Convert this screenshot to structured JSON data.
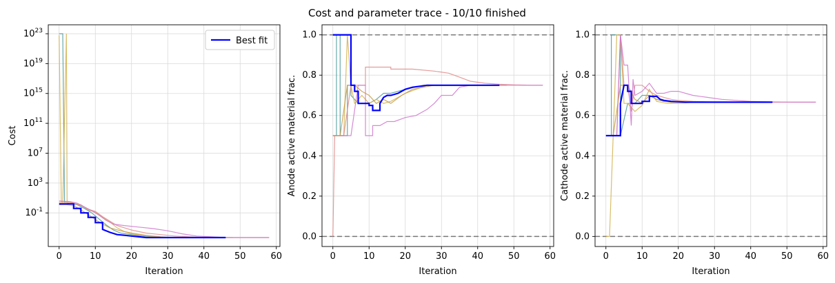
{
  "figure": {
    "suptitle": "Cost and parameter trace - 10/10 finished"
  },
  "colors": {
    "best_fit": "#0000ff",
    "trace_palette": [
      "#4c9a9a",
      "#d2b24e",
      "#e08a8a",
      "#cc77cc",
      "#c49a4a",
      "#7fb0a0"
    ],
    "bound_line": "#777777",
    "grid": "#d9d9d9"
  },
  "chart_data": [
    {
      "type": "line",
      "xlabel": "Iteration",
      "ylabel": "Cost",
      "yscale": "log",
      "xlim": [
        -3,
        61
      ],
      "ylim_exp": [
        -5.5,
        24.2
      ],
      "xticks": [
        0,
        10,
        20,
        30,
        40,
        50,
        60
      ],
      "yticks": [
        {
          "label": "10",
          "exp": "-1",
          "v": -1
        },
        {
          "label": "10",
          "exp": "3",
          "v": 3
        },
        {
          "label": "10",
          "exp": "7",
          "v": 7
        },
        {
          "label": "10",
          "exp": "11",
          "v": 11
        },
        {
          "label": "10",
          "exp": "15",
          "v": 15
        },
        {
          "label": "10",
          "exp": "19",
          "v": 19
        },
        {
          "label": "10",
          "exp": "23",
          "v": 23
        }
      ],
      "grid": true,
      "legend": {
        "position": "top-right",
        "entries": [
          "Best fit"
        ]
      },
      "best_fit": {
        "name": "Best fit",
        "x": [
          0,
          4,
          4,
          6,
          6,
          8,
          8,
          10,
          10,
          12,
          12,
          14,
          16,
          18,
          20,
          22,
          24,
          26,
          30,
          35,
          40,
          46
        ],
        "y_log10": [
          0.2,
          0.2,
          -0.4,
          -0.4,
          -1.0,
          -1.0,
          -1.6,
          -1.6,
          -2.3,
          -2.3,
          -3.2,
          -3.6,
          -3.9,
          -4.0,
          -4.1,
          -4.2,
          -4.3,
          -4.3,
          -4.3,
          -4.3,
          -4.3,
          -4.3
        ]
      },
      "traces": [
        {
          "x": [
            0,
            1,
            1.5,
            2,
            3,
            5,
            7,
            9,
            11,
            13,
            15,
            17,
            20,
            23,
            26,
            30,
            35,
            40,
            46
          ],
          "y_log10": [
            23,
            23,
            0.4,
            0.4,
            0.2,
            0.1,
            -0.4,
            -1.0,
            -1.8,
            -2.6,
            -3.3,
            -3.7,
            -3.9,
            -4.1,
            -4.2,
            -4.3,
            -4.3,
            -4.3,
            -4.3
          ]
        },
        {
          "x": [
            0,
            0.6,
            1,
            2,
            2.2,
            4,
            6,
            8,
            10,
            12,
            14,
            16,
            18,
            20,
            23,
            26,
            30,
            36,
            42,
            48
          ],
          "y_log10": [
            22.8,
            0.5,
            0.4,
            23,
            0.6,
            0.3,
            0.1,
            -0.6,
            -0.9,
            -1.6,
            -2.2,
            -3.0,
            -3.5,
            -3.8,
            -4.0,
            -4.2,
            -4.3,
            -4.3,
            -4.3,
            -4.3
          ]
        },
        {
          "x": [
            0,
            2,
            4,
            6,
            8,
            10,
            12,
            14,
            16,
            20,
            24,
            28,
            32,
            36,
            40,
            45,
            50,
            55,
            58
          ],
          "y_log10": [
            0.4,
            0.4,
            0.3,
            0.0,
            -0.5,
            -0.8,
            -1.5,
            -2.1,
            -2.7,
            -3.3,
            -3.7,
            -3.9,
            -4.1,
            -4.2,
            -4.3,
            -4.3,
            -4.3,
            -4.3,
            -4.3
          ]
        },
        {
          "x": [
            0,
            3,
            5,
            7,
            9,
            11,
            13,
            15,
            18,
            22,
            26,
            30,
            34,
            38,
            42,
            46,
            50,
            54,
            58
          ],
          "y_log10": [
            0.6,
            0.5,
            0.3,
            -0.2,
            -0.7,
            -1.3,
            -2.0,
            -2.5,
            -2.7,
            -2.9,
            -3.1,
            -3.4,
            -3.8,
            -4.1,
            -4.2,
            -4.3,
            -4.3,
            -4.3,
            -4.3
          ]
        },
        {
          "x": [
            0,
            2,
            4,
            6,
            8,
            10,
            12,
            14,
            17,
            20,
            24,
            28,
            32,
            36,
            40,
            44
          ],
          "y_log10": [
            0.1,
            0.1,
            0.0,
            -0.6,
            -1.2,
            -1.9,
            -2.5,
            -3.0,
            -3.4,
            -3.7,
            -4.0,
            -4.2,
            -4.3,
            -4.3,
            -4.3,
            -4.3
          ]
        }
      ]
    },
    {
      "type": "line",
      "xlabel": "Iteration",
      "ylabel": "Anode active material frac.",
      "xlim": [
        -3,
        61
      ],
      "ylim": [
        -0.05,
        1.05
      ],
      "xticks": [
        0,
        10,
        20,
        30,
        40,
        50,
        60
      ],
      "yticks": [
        0.0,
        0.2,
        0.4,
        0.6,
        0.8,
        1.0
      ],
      "bounds": [
        0.0,
        1.0
      ],
      "grid": true,
      "best_fit": {
        "name": "Best fit",
        "x": [
          0,
          4,
          5,
          5,
          6,
          6,
          7,
          7,
          10,
          10,
          11,
          11,
          13,
          13,
          14,
          15,
          16,
          18,
          20,
          22,
          24,
          26,
          30,
          35,
          40,
          46
        ],
        "y": [
          1.0,
          1.0,
          1.0,
          0.75,
          0.75,
          0.72,
          0.72,
          0.66,
          0.66,
          0.65,
          0.65,
          0.625,
          0.625,
          0.66,
          0.69,
          0.7,
          0.7,
          0.71,
          0.73,
          0.74,
          0.745,
          0.75,
          0.75,
          0.75,
          0.75,
          0.75
        ]
      },
      "traces": [
        {
          "x": [
            0,
            1,
            1,
            2,
            2,
            4,
            4,
            5,
            5,
            7,
            10,
            12,
            14,
            16,
            20,
            25,
            30,
            36,
            42,
            48
          ],
          "y": [
            0.5,
            0.5,
            1.0,
            1.0,
            0.5,
            0.5,
            0.75,
            0.75,
            0.7,
            0.66,
            0.66,
            0.68,
            0.71,
            0.71,
            0.73,
            0.75,
            0.75,
            0.75,
            0.75,
            0.75
          ]
        },
        {
          "x": [
            0,
            2,
            3,
            4,
            5,
            6,
            8,
            10,
            12,
            14,
            16,
            18,
            20,
            23,
            26,
            30,
            36,
            42,
            48
          ],
          "y": [
            0.5,
            0.5,
            0.5,
            1.0,
            0.75,
            0.66,
            0.7,
            0.66,
            0.68,
            0.66,
            0.67,
            0.69,
            0.71,
            0.73,
            0.75,
            0.75,
            0.75,
            0.75,
            0.75
          ]
        },
        {
          "x": [
            0,
            0.5,
            1,
            3,
            5,
            7,
            9,
            9,
            12,
            16,
            16,
            22,
            28,
            32,
            35,
            38,
            42,
            46,
            50,
            55,
            58
          ],
          "y": [
            0.0,
            0.5,
            0.5,
            0.5,
            0.75,
            0.75,
            0.75,
            0.84,
            0.84,
            0.84,
            0.83,
            0.83,
            0.82,
            0.81,
            0.79,
            0.77,
            0.76,
            0.755,
            0.752,
            0.75,
            0.75
          ]
        },
        {
          "x": [
            0,
            3,
            5,
            7,
            9,
            9,
            11,
            11,
            13,
            15,
            17,
            20,
            23,
            26,
            28,
            30,
            33,
            35,
            38,
            42,
            46,
            50,
            55,
            58
          ],
          "y": [
            0.5,
            0.5,
            0.5,
            0.75,
            0.75,
            0.5,
            0.5,
            0.55,
            0.55,
            0.57,
            0.57,
            0.59,
            0.6,
            0.63,
            0.66,
            0.7,
            0.7,
            0.74,
            0.75,
            0.75,
            0.75,
            0.75,
            0.75,
            0.75
          ]
        },
        {
          "x": [
            0,
            2,
            4,
            6,
            8,
            10,
            12,
            14,
            16,
            19,
            22,
            25,
            28,
            32,
            36,
            40,
            44
          ],
          "y": [
            0.5,
            0.5,
            0.75,
            0.75,
            0.72,
            0.7,
            0.66,
            0.68,
            0.66,
            0.7,
            0.73,
            0.74,
            0.75,
            0.75,
            0.75,
            0.75,
            0.75
          ]
        }
      ]
    },
    {
      "type": "line",
      "xlabel": "Iteration",
      "ylabel": "Cathode active material frac.",
      "xlim": [
        -3,
        61
      ],
      "ylim": [
        -0.05,
        1.05
      ],
      "xticks": [
        0,
        10,
        20,
        30,
        40,
        50,
        60
      ],
      "yticks": [
        0.0,
        0.2,
        0.4,
        0.6,
        0.8,
        1.0
      ],
      "bounds": [
        0.0,
        1.0
      ],
      "grid": true,
      "best_fit": {
        "name": "Best fit",
        "x": [
          0,
          4,
          4,
          5,
          6,
          6,
          7,
          7,
          10,
          10,
          12,
          12,
          14,
          15,
          16,
          18,
          20,
          22,
          24,
          26,
          30,
          35,
          40,
          46
        ],
        "y": [
          0.5,
          0.5,
          0.66,
          0.75,
          0.75,
          0.72,
          0.72,
          0.66,
          0.66,
          0.67,
          0.67,
          0.695,
          0.695,
          0.68,
          0.675,
          0.67,
          0.668,
          0.666,
          0.666,
          0.666,
          0.666,
          0.666,
          0.666,
          0.666
        ]
      },
      "traces": [
        {
          "x": [
            0,
            1.5,
            1.5,
            4,
            4,
            6,
            8,
            10,
            12,
            14,
            16,
            20,
            25,
            30,
            36,
            42,
            48
          ],
          "y": [
            0.5,
            0.5,
            1.0,
            1.0,
            0.5,
            0.66,
            0.66,
            0.7,
            0.7,
            0.68,
            0.67,
            0.666,
            0.666,
            0.666,
            0.666,
            0.666,
            0.666
          ]
        },
        {
          "x": [
            0,
            0.5,
            1,
            2,
            3,
            4,
            5,
            6,
            8,
            10,
            12,
            14,
            17,
            20,
            24,
            28,
            32,
            38,
            44,
            48
          ],
          "y": [
            0.0,
            0.0,
            0.0,
            0.5,
            1.0,
            1.0,
            0.66,
            0.66,
            0.62,
            0.65,
            0.73,
            0.67,
            0.66,
            0.66,
            0.665,
            0.666,
            0.666,
            0.666,
            0.666,
            0.666
          ]
        },
        {
          "x": [
            0,
            3,
            4,
            5,
            6,
            7,
            8,
            10,
            12,
            14,
            16,
            18,
            20,
            24,
            28,
            32,
            38,
            44,
            50,
            55,
            58
          ],
          "y": [
            0.5,
            0.5,
            1.0,
            0.75,
            0.75,
            0.62,
            0.75,
            0.75,
            0.72,
            0.7,
            0.69,
            0.68,
            0.675,
            0.67,
            0.668,
            0.666,
            0.666,
            0.666,
            0.666,
            0.666,
            0.666
          ]
        },
        {
          "x": [
            0,
            3,
            4,
            5,
            6,
            7,
            7.5,
            8,
            10,
            12,
            14,
            16,
            18,
            20,
            24,
            28,
            32,
            36,
            40,
            46,
            52,
            58
          ],
          "y": [
            0.5,
            0.5,
            1.0,
            0.85,
            0.85,
            0.55,
            0.78,
            0.7,
            0.72,
            0.76,
            0.71,
            0.71,
            0.72,
            0.72,
            0.7,
            0.69,
            0.68,
            0.675,
            0.67,
            0.667,
            0.666,
            0.666
          ]
        },
        {
          "x": [
            0,
            2,
            4,
            6,
            8,
            10,
            12,
            14,
            16,
            18,
            21,
            24,
            28,
            32,
            36,
            40,
            44
          ],
          "y": [
            0.5,
            0.5,
            0.75,
            0.75,
            0.68,
            0.66,
            0.7,
            0.68,
            0.67,
            0.665,
            0.665,
            0.666,
            0.666,
            0.666,
            0.666,
            0.666,
            0.666
          ]
        }
      ]
    }
  ]
}
